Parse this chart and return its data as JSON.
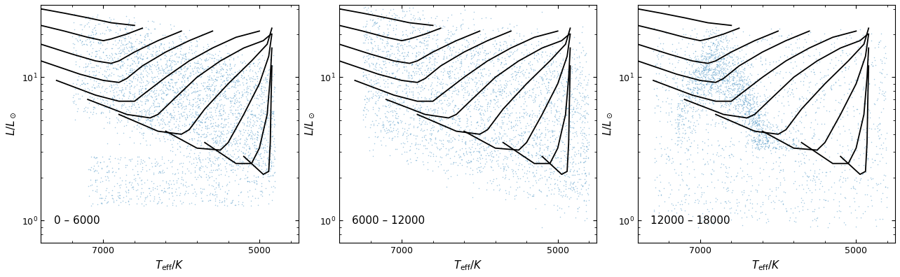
{
  "panels": [
    {
      "label": "0 – 6000"
    },
    {
      "label": "6000 – 12000"
    },
    {
      "label": "12000 – 18000"
    }
  ],
  "xlim": [
    7800,
    4500
  ],
  "ylim_log": [
    0.7,
    32
  ],
  "xlabel": "$T_{\\mathrm{eff}}/K$",
  "ylabel_left": "$L/L_\\odot$",
  "dot_color": "#5b9ec9",
  "dot_size": 1.2,
  "dot_alpha": 0.55,
  "track_color": "black",
  "track_lw": 1.3,
  "background_color": "white",
  "tick_direction": "in",
  "label_fontsize": 11,
  "annotation_fontsize": 11,
  "xticks": [
    7000,
    5000
  ],
  "yticks": [
    1.0,
    10.0
  ]
}
